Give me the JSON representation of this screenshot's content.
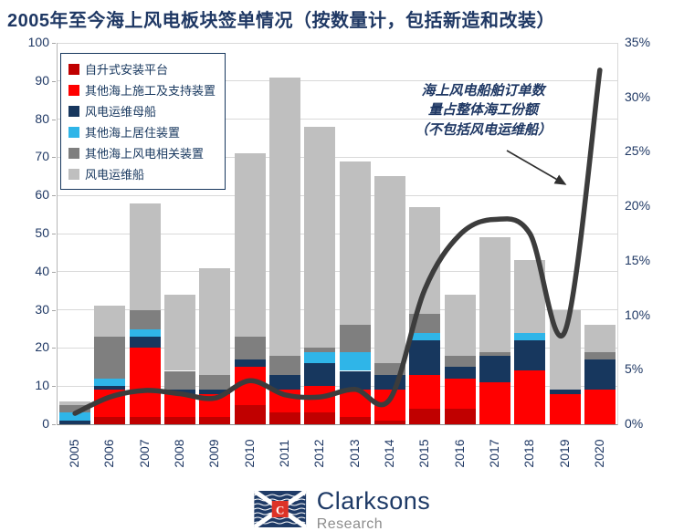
{
  "title": "2005年至今海上风电板块签单情况（按数量计，包括新造和改装）",
  "colors": {
    "title_text": "#1F3864",
    "axis_text": "#1F3864",
    "gridline": "#D9D9D9",
    "page_bg": "#FFFFFF",
    "legend_border": "#17375E",
    "line": "#3C3C3C"
  },
  "annotation": {
    "lines": [
      "海上风电船舶订单数",
      "量占整体海工份额",
      "（不包括风电运维船）"
    ]
  },
  "chart_data": {
    "type": "combo-stacked-bar-line",
    "title": "2005年至今海上风电板块签单情况（按数量计，包括新造和改装）",
    "categories": [
      "2005",
      "2006",
      "2007",
      "2008",
      "2009",
      "2010",
      "2011",
      "2012",
      "2013",
      "2014",
      "2015",
      "2016",
      "2017",
      "2018",
      "2019",
      "2020"
    ],
    "stacked": true,
    "grid": true,
    "legend_position": "top-left",
    "bar_series": [
      {
        "name": "自升式安装平台",
        "color": "#C00000",
        "values": [
          0,
          2,
          2,
          2,
          2,
          5,
          3,
          3,
          2,
          1,
          4,
          4,
          0,
          0,
          0,
          0
        ]
      },
      {
        "name": "其他海上施工及支持装置",
        "color": "#FF0000",
        "values": [
          0,
          7,
          18,
          6,
          6,
          10,
          6,
          7,
          7,
          8,
          9,
          8,
          11,
          14,
          8,
          9
        ]
      },
      {
        "name": "风电运维母船",
        "color": "#17375E",
        "values": [
          1,
          1,
          3,
          1,
          1,
          2,
          4,
          6,
          5,
          4,
          9,
          3,
          7,
          8,
          1,
          8
        ]
      },
      {
        "name": "其他海上居住装置",
        "color": "#2FB5E8",
        "values": [
          2,
          2,
          2,
          0,
          0,
          0,
          0,
          3,
          5,
          0,
          2,
          0,
          0,
          2,
          0,
          0
        ]
      },
      {
        "name": "其他海上风电相关装置",
        "color": "#7F7F7F",
        "values": [
          2,
          11,
          5,
          5,
          4,
          6,
          5,
          1,
          7,
          3,
          5,
          3,
          1,
          0,
          0,
          2
        ]
      },
      {
        "name": "风电运维船",
        "color": "#BFBFBF",
        "values": [
          1,
          8,
          28,
          20,
          28,
          48,
          73,
          58,
          43,
          49,
          28,
          16,
          30,
          19,
          21,
          7
        ]
      }
    ],
    "line_series": {
      "name": "海上风电船舶订单数量占整体海工份额（不包括风电运维船）",
      "color": "#3C3C3C",
      "values": [
        1.0,
        2.5,
        3.1,
        2.8,
        2.4,
        4.0,
        2.7,
        2.5,
        3.2,
        2.3,
        12.4,
        17.4,
        18.8,
        17.5,
        8.5,
        32.5
      ]
    },
    "left_axis": {
      "min": 0,
      "max": 100,
      "step": 10
    },
    "right_axis": {
      "min": 0,
      "max": 35,
      "step": 5,
      "suffix": "%"
    }
  },
  "logo": {
    "brand": "Clarksons",
    "sub_brand": "Research",
    "flag_letter": "C"
  }
}
